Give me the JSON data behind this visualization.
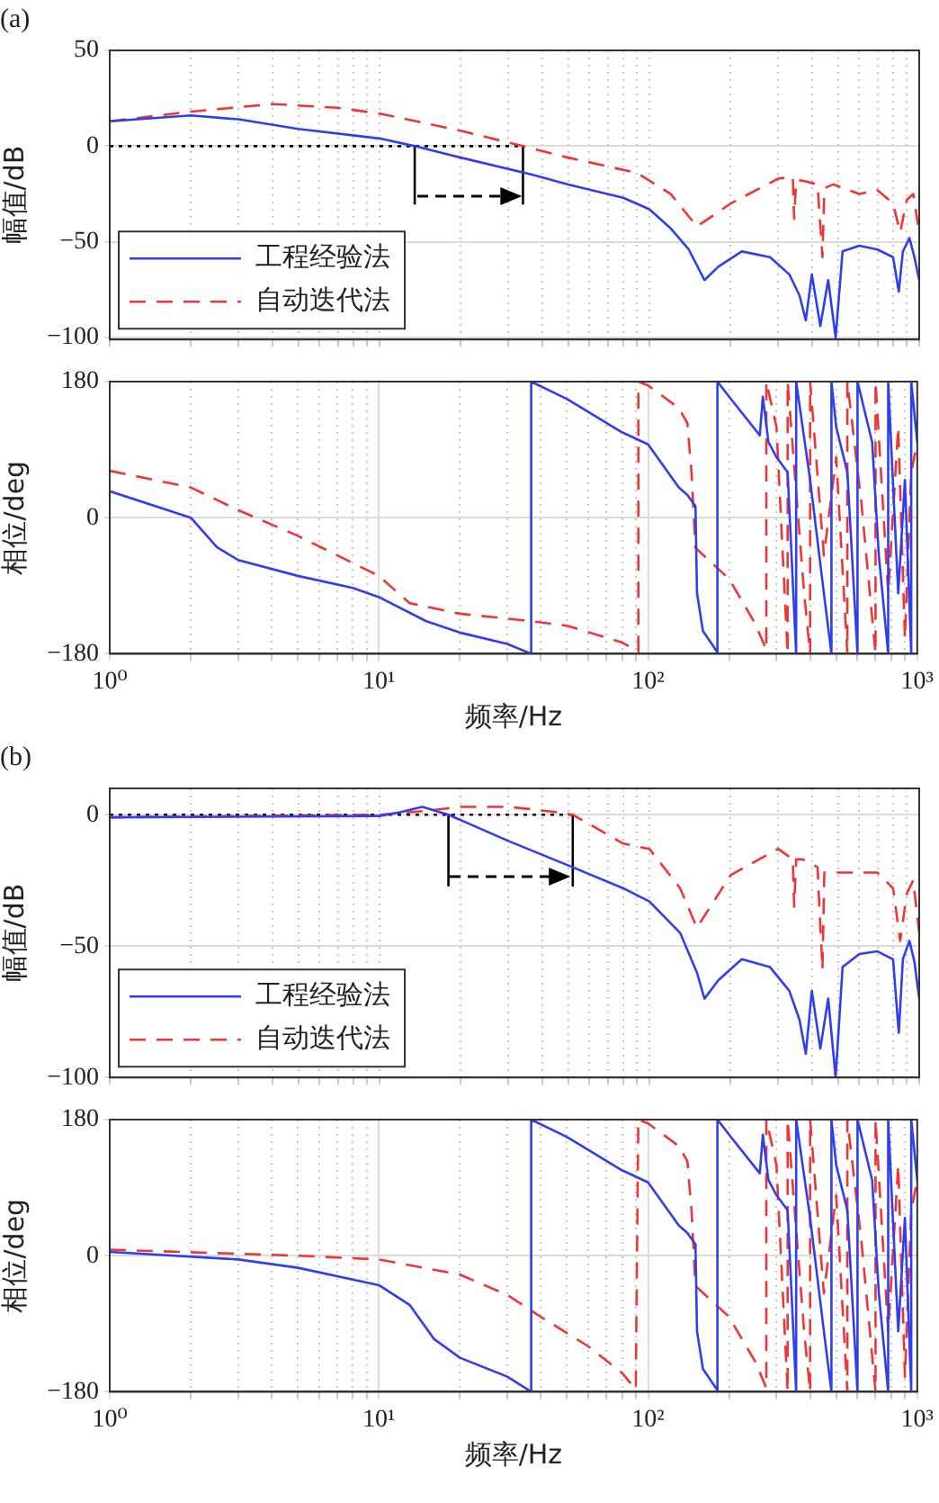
{
  "chart_data": [
    {
      "type": "line",
      "title": "(a)",
      "ylabel": "幅值/dB",
      "log": "x",
      "grid": true,
      "legend": "bottom left",
      "tick_labels": "y",
      "xlim": [
        1,
        1000
      ],
      "xticks": [
        {
          "value": 1,
          "label": null
        },
        {
          "value": 2,
          "label": null
        },
        {
          "value": 3,
          "label": null
        },
        {
          "value": 4,
          "label": null
        },
        {
          "value": 5,
          "label": null
        },
        {
          "value": 6,
          "label": null
        },
        {
          "value": 7,
          "label": null
        },
        {
          "value": 8,
          "label": null
        },
        {
          "value": 9,
          "label": null
        },
        {
          "value": 10,
          "label": null
        },
        {
          "value": 20,
          "label": null
        },
        {
          "value": 30,
          "label": null
        },
        {
          "value": 40,
          "label": null
        },
        {
          "value": 50,
          "label": null
        },
        {
          "value": 60,
          "label": null
        },
        {
          "value": 70,
          "label": null
        },
        {
          "value": 80,
          "label": null
        },
        {
          "value": 90,
          "label": null
        },
        {
          "value": 100,
          "label": null
        },
        {
          "value": 200,
          "label": null
        },
        {
          "value": 300,
          "label": null
        },
        {
          "value": 400,
          "label": null
        },
        {
          "value": 500,
          "label": null
        },
        {
          "value": 600,
          "label": null
        },
        {
          "value": 700,
          "label": null
        },
        {
          "value": 800,
          "label": null
        },
        {
          "value": 900,
          "label": null
        },
        {
          "value": 1000,
          "label": null
        }
      ],
      "ylim": [
        -101,
        50
      ],
      "yticks": [
        -100,
        -50,
        0,
        50
      ],
      "series": [
        {
          "name": "工程经验法",
          "color": "#2e3ef0",
          "line_style": "solid",
          "x": [
            1,
            2,
            3,
            5,
            10,
            13.5,
            20,
            37,
            50,
            80,
            100,
            120,
            140,
            160,
            180,
            220,
            280,
            330,
            360,
            380,
            400,
            430,
            460,
            490,
            520,
            600,
            700,
            800,
            840,
            870,
            920,
            960,
            1000
          ],
          "values": [
            13,
            16,
            14,
            9,
            4,
            0,
            -6,
            -15,
            -20,
            -27,
            -33,
            -43,
            -54,
            -70,
            -63,
            -55,
            -58,
            -67,
            -78,
            -91,
            -67,
            -94,
            -70,
            -100,
            -55,
            -52,
            -54,
            -58,
            -76,
            -55,
            -48,
            -58,
            -70
          ]
        },
        {
          "name": "自动迭代法",
          "color": "#f03535",
          "line_style": "dashed",
          "x": [
            1,
            2,
            4,
            7,
            10,
            20,
            34,
            50,
            90,
            120,
            150,
            200,
            300,
            340,
            344,
            350,
            370,
            420,
            438,
            445,
            480,
            600,
            700,
            800,
            850,
            900,
            950,
            1000
          ],
          "values": [
            13,
            18,
            22,
            20,
            17,
            8,
            0,
            -6,
            -14,
            -25,
            -42,
            -30,
            -17,
            -16,
            -38,
            -18,
            -18,
            -20,
            -58,
            -22,
            -20,
            -25,
            -23,
            -30,
            -45,
            -28,
            -25,
            -45
          ]
        },
        {
          "color": "#000000",
          "line_style": "dotted",
          "x": [
            1,
            34
          ],
          "values": [
            0,
            0
          ]
        },
        {
          "color": "#000000",
          "line_style": "solid",
          "x": [
            13.5,
            13.5
          ],
          "values": [
            0,
            -30
          ]
        },
        {
          "color": "#000000",
          "line_style": "solid",
          "x": [
            34,
            34
          ],
          "values": [
            0,
            -30
          ]
        }
      ]
    },
    {
      "type": "line",
      "xlabel": "频率/Hz",
      "ylabel": "相位/deg",
      "log": "x",
      "grid": true,
      "xlim": [
        1,
        1000
      ],
      "xticks": [
        {
          "value": 1,
          "label": "10⁰"
        },
        {
          "value": 2,
          "label": null
        },
        {
          "value": 3,
          "label": null
        },
        {
          "value": 4,
          "label": null
        },
        {
          "value": 5,
          "label": null
        },
        {
          "value": 6,
          "label": null
        },
        {
          "value": 7,
          "label": null
        },
        {
          "value": 8,
          "label": null
        },
        {
          "value": 9,
          "label": null
        },
        {
          "value": 10,
          "label": "10¹"
        },
        {
          "value": 20,
          "label": null
        },
        {
          "value": 30,
          "label": null
        },
        {
          "value": 40,
          "label": null
        },
        {
          "value": 50,
          "label": null
        },
        {
          "value": 60,
          "label": null
        },
        {
          "value": 70,
          "label": null
        },
        {
          "value": 80,
          "label": null
        },
        {
          "value": 90,
          "label": null
        },
        {
          "value": 100,
          "label": "10²"
        },
        {
          "value": 200,
          "label": null
        },
        {
          "value": 300,
          "label": null
        },
        {
          "value": 400,
          "label": null
        },
        {
          "value": 500,
          "label": null
        },
        {
          "value": 600,
          "label": null
        },
        {
          "value": 700,
          "label": null
        },
        {
          "value": 800,
          "label": null
        },
        {
          "value": 900,
          "label": null
        },
        {
          "value": 1000,
          "label": "10³"
        }
      ],
      "ylim": [
        -180,
        180
      ],
      "yticks": [
        -180,
        0,
        180
      ],
      "series": [
        {
          "color": "#2e3ef0",
          "line_style": "solid",
          "x": [
            1,
            2,
            2.5,
            3,
            5,
            8,
            10,
            15,
            20,
            30,
            36.8,
            36.8,
            50,
            80,
            100,
            130,
            140,
            150,
            152,
            160,
            181,
            181,
            200,
            260,
            267,
            280,
            300,
            330,
            355,
            355,
            400,
            450,
            480,
            480,
            500,
            550,
            600,
            600,
            680,
            720,
            780,
            780,
            850,
            900,
            950,
            950,
            1000
          ],
          "values": [
            35,
            0,
            -39,
            -56,
            -77,
            -93,
            -105,
            -137,
            -152,
            -167,
            -180,
            180,
            157,
            113,
            97,
            40,
            30,
            15,
            -100,
            -150,
            -178,
            180,
            160,
            109,
            160,
            100,
            80,
            60,
            -180,
            180,
            50,
            -100,
            -180,
            180,
            120,
            60,
            -180,
            180,
            100,
            -50,
            -180,
            180,
            -100,
            50,
            -180,
            180,
            100
          ]
        },
        {
          "color": "#f03535",
          "line_style": "dashed",
          "x": [
            1,
            2,
            3,
            5,
            10,
            13,
            20,
            37,
            50,
            80,
            92,
            92,
            100,
            130,
            140,
            145,
            150,
            200,
            250,
            275,
            275,
            300,
            330,
            330,
            380,
            400,
            400,
            450,
            500,
            550,
            550,
            620,
            700,
            700,
            780,
            850,
            900,
            950,
            1000
          ],
          "values": [
            62,
            40,
            10,
            -24,
            -77,
            -113,
            -127,
            -137,
            -143,
            -165,
            -177,
            180,
            175,
            145,
            125,
            60,
            -40,
            -81,
            -140,
            -175,
            180,
            120,
            -180,
            180,
            -100,
            -180,
            180,
            -50,
            80,
            -180,
            180,
            20,
            -180,
            180,
            -100,
            120,
            -160,
            60,
            100
          ]
        }
      ]
    },
    {
      "type": "line",
      "title": "(b)",
      "ylabel": "幅值/dB",
      "log": "x",
      "grid": true,
      "legend": "bottom left",
      "tick_labels": "y",
      "xlim": [
        1,
        1000
      ],
      "xticks": [
        {
          "value": 1,
          "label": null
        },
        {
          "value": 2,
          "label": null
        },
        {
          "value": 3,
          "label": null
        },
        {
          "value": 4,
          "label": null
        },
        {
          "value": 5,
          "label": null
        },
        {
          "value": 6,
          "label": null
        },
        {
          "value": 7,
          "label": null
        },
        {
          "value": 8,
          "label": null
        },
        {
          "value": 9,
          "label": null
        },
        {
          "value": 10,
          "label": null
        },
        {
          "value": 20,
          "label": null
        },
        {
          "value": 30,
          "label": null
        },
        {
          "value": 40,
          "label": null
        },
        {
          "value": 50,
          "label": null
        },
        {
          "value": 60,
          "label": null
        },
        {
          "value": 70,
          "label": null
        },
        {
          "value": 80,
          "label": null
        },
        {
          "value": 90,
          "label": null
        },
        {
          "value": 100,
          "label": null
        },
        {
          "value": 200,
          "label": null
        },
        {
          "value": 300,
          "label": null
        },
        {
          "value": 400,
          "label": null
        },
        {
          "value": 500,
          "label": null
        },
        {
          "value": 600,
          "label": null
        },
        {
          "value": 700,
          "label": null
        },
        {
          "value": 800,
          "label": null
        },
        {
          "value": 900,
          "label": null
        },
        {
          "value": 1000,
          "label": null
        }
      ],
      "ylim": [
        -100,
        10
      ],
      "yticks": [
        -100,
        -50,
        0
      ],
      "series": [
        {
          "name": "工程经验法",
          "color": "#2e3ef0",
          "line_style": "solid",
          "x": [
            1,
            10,
            12,
            14.4,
            18,
            30,
            52,
            80,
            100,
            130,
            150,
            160,
            180,
            220,
            280,
            330,
            360,
            380,
            400,
            430,
            460,
            490,
            520,
            600,
            700,
            800,
            840,
            870,
            920,
            960,
            1000
          ],
          "values": [
            -1,
            -0.5,
            1,
            3,
            0,
            -10,
            -20,
            -28,
            -33,
            -45,
            -60,
            -70,
            -63,
            -55,
            -58,
            -67,
            -78,
            -91,
            -67,
            -89,
            -70,
            -100,
            -58,
            -53,
            -52,
            -55,
            -83,
            -55,
            -48,
            -56,
            -70
          ]
        },
        {
          "name": "自动迭代法",
          "color": "#f03535",
          "line_style": "dashed",
          "x": [
            1,
            10,
            15,
            20,
            30,
            45,
            52,
            80,
            100,
            130,
            150,
            200,
            300,
            340,
            344,
            350,
            370,
            420,
            438,
            445,
            480,
            600,
            700,
            800,
            850,
            900,
            950,
            1000
          ],
          "values": [
            -1,
            0,
            1.5,
            3,
            3,
            1,
            0,
            -11,
            -13,
            -28,
            -43,
            -23,
            -13,
            -17,
            -35,
            -17,
            -17,
            -20,
            -59,
            -22,
            -22,
            -22,
            -22,
            -28,
            -48,
            -30,
            -25,
            -45
          ]
        },
        {
          "color": "#000000",
          "line_style": "dotted",
          "x": [
            1,
            52
          ],
          "values": [
            0,
            0
          ]
        },
        {
          "color": "#000000",
          "line_style": "solid",
          "x": [
            18,
            18
          ],
          "values": [
            0,
            -27
          ]
        },
        {
          "color": "#000000",
          "line_style": "solid",
          "x": [
            52,
            52
          ],
          "values": [
            0,
            -27
          ]
        }
      ]
    },
    {
      "type": "line",
      "xlabel": "频率/Hz",
      "ylabel": "相位/deg",
      "log": "x",
      "grid": true,
      "xlim": [
        1,
        1000
      ],
      "xticks": [
        {
          "value": 1,
          "label": "10⁰"
        },
        {
          "value": 2,
          "label": null
        },
        {
          "value": 3,
          "label": null
        },
        {
          "value": 4,
          "label": null
        },
        {
          "value": 5,
          "label": null
        },
        {
          "value": 6,
          "label": null
        },
        {
          "value": 7,
          "label": null
        },
        {
          "value": 8,
          "label": null
        },
        {
          "value": 9,
          "label": null
        },
        {
          "value": 10,
          "label": "10¹"
        },
        {
          "value": 20,
          "label": null
        },
        {
          "value": 30,
          "label": null
        },
        {
          "value": 40,
          "label": null
        },
        {
          "value": 50,
          "label": null
        },
        {
          "value": 60,
          "label": null
        },
        {
          "value": 70,
          "label": null
        },
        {
          "value": 80,
          "label": null
        },
        {
          "value": 90,
          "label": null
        },
        {
          "value": 100,
          "label": "10²"
        },
        {
          "value": 200,
          "label": null
        },
        {
          "value": 300,
          "label": null
        },
        {
          "value": 400,
          "label": null
        },
        {
          "value": 500,
          "label": null
        },
        {
          "value": 600,
          "label": null
        },
        {
          "value": 700,
          "label": null
        },
        {
          "value": 800,
          "label": null
        },
        {
          "value": 900,
          "label": null
        },
        {
          "value": 1000,
          "label": "10³"
        }
      ],
      "ylim": [
        -180,
        180
      ],
      "yticks": [
        -180,
        0,
        180
      ],
      "series": [
        {
          "color": "#2e3ef0",
          "line_style": "solid",
          "x": [
            1,
            3,
            5,
            10,
            13,
            16,
            20,
            30,
            36.8,
            36.8,
            50,
            80,
            100,
            130,
            140,
            150,
            152,
            160,
            181,
            181,
            200,
            260,
            267,
            280,
            300,
            330,
            355,
            355,
            400,
            450,
            480,
            480,
            500,
            550,
            600,
            600,
            680,
            720,
            780,
            780,
            850,
            900,
            950,
            950,
            1000
          ],
          "values": [
            5,
            -5,
            -16,
            -39,
            -65,
            -110,
            -135,
            -160,
            -180,
            180,
            157,
            113,
            97,
            40,
            30,
            15,
            -100,
            -150,
            -178,
            180,
            160,
            109,
            160,
            100,
            80,
            60,
            -180,
            180,
            50,
            -100,
            -180,
            180,
            120,
            60,
            -180,
            180,
            100,
            -50,
            -180,
            180,
            -100,
            50,
            -180,
            180,
            100
          ]
        },
        {
          "color": "#f03535",
          "line_style": "dashed",
          "x": [
            1,
            5,
            10,
            20,
            30,
            40,
            60,
            80,
            90,
            92,
            100,
            130,
            140,
            145,
            150,
            200,
            250,
            275,
            275,
            300,
            330,
            330,
            380,
            400,
            400,
            450,
            500,
            550,
            550,
            620,
            700,
            700,
            780,
            850,
            900,
            950,
            1000
          ],
          "values": [
            8,
            0,
            -5,
            -25,
            -52,
            -81,
            -120,
            -155,
            -177,
            180,
            175,
            145,
            125,
            60,
            -40,
            -81,
            -140,
            -175,
            180,
            120,
            -180,
            180,
            -100,
            -180,
            180,
            -50,
            80,
            -180,
            180,
            20,
            -180,
            180,
            -100,
            120,
            -160,
            60,
            100
          ]
        }
      ]
    }
  ]
}
